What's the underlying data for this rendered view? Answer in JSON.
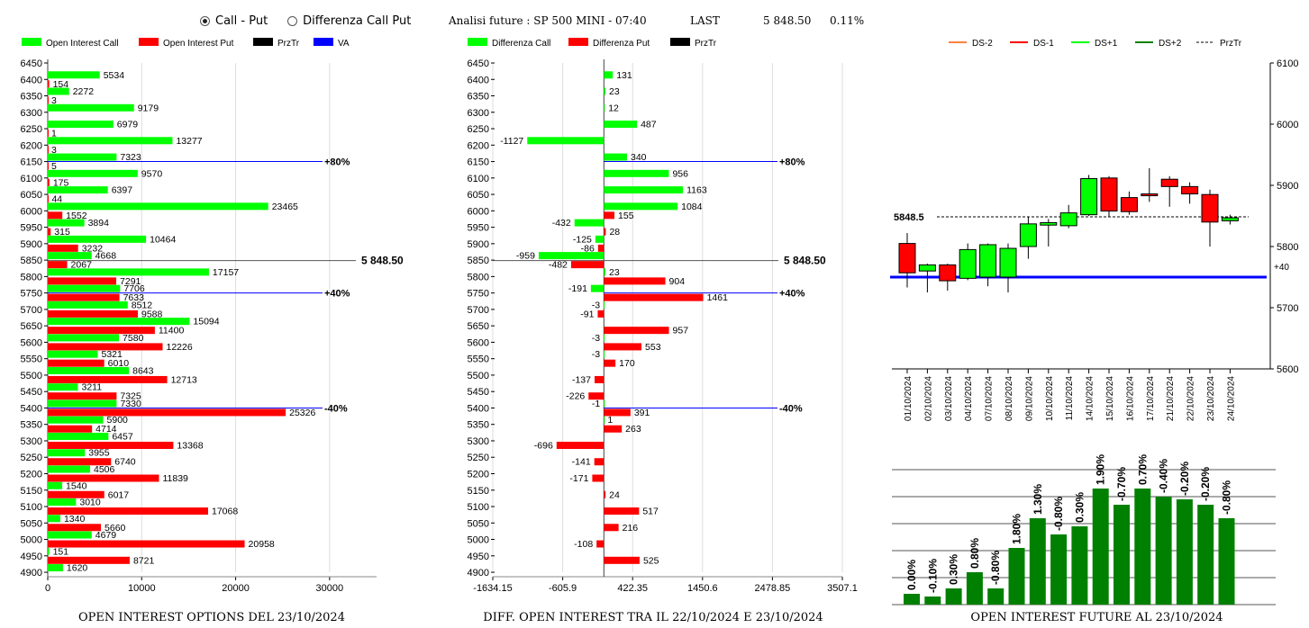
{
  "header": {
    "radio_call_put": "Call - Put",
    "radio_diff": "Differenza Call Put",
    "analisi": "Analisi future : SP 500 MINI - 07:40",
    "last_label": "LAST",
    "last_value": "5 848.50",
    "last_change": "0.11%"
  },
  "footers": {
    "left": "OPEN INTEREST OPTIONS DEL 23/10/2024",
    "middle": "DIFF. OPEN INTEREST TRA IL 22/10/2024 E 23/10/2024",
    "right": "OPEN INTEREST FUTURE AL 23/10/2024"
  },
  "colors": {
    "call": "#00ff00",
    "put": "#ff0000",
    "przTr": "#000000",
    "va": "#0000ff",
    "future_bar": "#008000"
  },
  "chart_data": [
    {
      "type": "bar",
      "orientation": "horizontal",
      "legend": [
        "Open Interest Call",
        "Open Interest Put",
        "PrzTr",
        "VA"
      ],
      "strikes": [
        6450,
        6400,
        6350,
        6300,
        6250,
        6200,
        6150,
        6100,
        6050,
        6000,
        5950,
        5900,
        5850,
        5800,
        5750,
        5700,
        5650,
        5600,
        5550,
        5500,
        5450,
        5400,
        5350,
        5300,
        5250,
        5200,
        5150,
        5100,
        5050,
        5000,
        4950,
        4900
      ],
      "call": [
        null,
        5534,
        2272,
        9179,
        6979,
        13277,
        7323,
        9570,
        6397,
        23465,
        3894,
        10464,
        4668,
        17157,
        7706,
        8512,
        15094,
        7580,
        5321,
        8643,
        3211,
        7330,
        5900,
        6457,
        3955,
        4506,
        1540,
        3010,
        1340,
        4679,
        151,
        1620
      ],
      "put": [
        null,
        154,
        3,
        null,
        1,
        3,
        5,
        175,
        44,
        1552,
        315,
        3232,
        2067,
        7291,
        7633,
        9588,
        11400,
        12226,
        6010,
        12713,
        7325,
        25326,
        4714,
        13368,
        6740,
        11839,
        6017,
        17068,
        5660,
        20958,
        8721,
        null
      ],
      "x_ticks": [
        "0",
        "10000",
        "20000",
        "30000"
      ],
      "xlim": [
        0,
        35000
      ],
      "prz_tr": 5848.5,
      "prz_tr_label": "5 848.50",
      "va_lines": [
        {
          "strike": 6150,
          "label": "+80%"
        },
        {
          "strike": 5750,
          "label": "+40%"
        },
        {
          "strike": 5400,
          "label": "-40%"
        }
      ]
    },
    {
      "type": "bar",
      "orientation": "horizontal",
      "legend": [
        "Differenza Call",
        "Differenza Put",
        "PrzTr"
      ],
      "strikes": [
        6450,
        6400,
        6350,
        6300,
        6250,
        6200,
        6150,
        6100,
        6050,
        6000,
        5950,
        5900,
        5850,
        5800,
        5750,
        5700,
        5650,
        5600,
        5550,
        5500,
        5450,
        5400,
        5350,
        5300,
        5250,
        5200,
        5150,
        5100,
        5050,
        5000,
        4950,
        4900
      ],
      "call": [
        null,
        131,
        23,
        12,
        487,
        -1127,
        340,
        956,
        1163,
        1084,
        -432,
        -125,
        -959,
        23,
        -191,
        -3,
        null,
        -3,
        -3,
        null,
        null,
        -1,
        1,
        null,
        null,
        null,
        null,
        null,
        null,
        null,
        null,
        null
      ],
      "put": [
        null,
        null,
        null,
        null,
        null,
        null,
        null,
        null,
        null,
        155,
        28,
        -86,
        -482,
        904,
        1461,
        -91,
        957,
        553,
        170,
        -137,
        -226,
        391,
        263,
        -696,
        -141,
        -171,
        24,
        517,
        216,
        -108,
        525,
        null
      ],
      "x_ticks": [
        "-1634.15",
        "-605.9",
        "422.35",
        "1450.6",
        "2478.85",
        "3507.1"
      ],
      "xlim": [
        -1634.15,
        3507.1
      ],
      "prz_tr": 5848.5,
      "prz_tr_label": "5 848.50",
      "va_lines": [
        {
          "strike": 6150,
          "label": "+80%"
        },
        {
          "strike": 5750,
          "label": "+40%"
        },
        {
          "strike": 5400,
          "label": "-40%"
        }
      ]
    },
    {
      "type": "candlestick",
      "legend": [
        "DS-2",
        "DS-1",
        "DS+1",
        "DS+2",
        "PrzTr"
      ],
      "dates": [
        "01/10/2024",
        "02/10/2024",
        "03/10/2024",
        "04/10/2024",
        "07/10/2024",
        "08/10/2024",
        "09/10/2024",
        "10/10/2024",
        "11/10/2024",
        "14/10/2024",
        "15/10/2024",
        "16/10/2024",
        "17/10/2024",
        "21/10/2024",
        "22/10/2024",
        "23/10/2024",
        "24/10/2024"
      ],
      "open": [
        5805,
        5760,
        5770,
        5748,
        5750,
        5750,
        5800,
        5835,
        5834,
        5852,
        5912,
        5880,
        5886,
        5910,
        5898,
        5885,
        5842
      ],
      "close": [
        5757,
        5770,
        5744,
        5795,
        5803,
        5797,
        5837,
        5839,
        5855,
        5911,
        5858,
        5857,
        5883,
        5898,
        5886,
        5840,
        5847
      ],
      "high": [
        5822,
        5772,
        5772,
        5805,
        5805,
        5805,
        5848,
        5845,
        5868,
        5917,
        5915,
        5890,
        5928,
        5915,
        5905,
        5893,
        5852
      ],
      "low": [
        5733,
        5725,
        5728,
        5745,
        5735,
        5725,
        5780,
        5800,
        5830,
        5850,
        5848,
        5852,
        5873,
        5865,
        5870,
        5800,
        5836
      ],
      "y_ticks": [
        "5600",
        "5700",
        "5800",
        "5900",
        "6000",
        "6100"
      ],
      "ylim": [
        5600,
        6100
      ],
      "prz_tr": 5848.5,
      "prz_tr_label": "5848.5",
      "va_line": {
        "value": 5750,
        "label": "+40"
      }
    },
    {
      "type": "bar",
      "values": [
        4,
        3,
        6,
        12,
        6,
        21,
        32,
        26,
        29,
        43,
        37,
        43,
        40,
        39,
        37,
        32
      ],
      "labels": [
        "0.00%",
        "-0.10%",
        "0.30%",
        "0.80%",
        "-0.80%",
        "1.80%",
        "1.30%",
        "-0.80%",
        "0.30%",
        "1.90%",
        "-0.70%",
        "0.70%",
        "-0.40%",
        "-0.20%",
        "-0.20%",
        "-0.80%"
      ],
      "ylim": [
        0,
        50
      ]
    }
  ]
}
